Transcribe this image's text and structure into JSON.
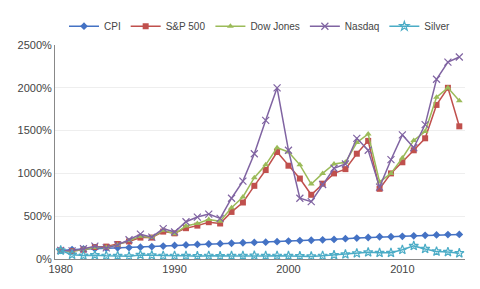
{
  "chart_data": {
    "type": "line",
    "x": [
      1980,
      1981,
      1982,
      1983,
      1984,
      1985,
      1986,
      1987,
      1988,
      1989,
      1990,
      1991,
      1992,
      1993,
      1994,
      1995,
      1996,
      1997,
      1998,
      1999,
      2000,
      2001,
      2002,
      2003,
      2004,
      2005,
      2006,
      2007,
      2008,
      2009,
      2010,
      2011,
      2012,
      2013,
      2014,
      2015
    ],
    "series": [
      {
        "name": "CPI",
        "color": "#4472C4",
        "marker": "diamond",
        "values": [
          100,
          110,
          117,
          121,
          126,
          131,
          133,
          138,
          144,
          151,
          159,
          165,
          170,
          175,
          179,
          184,
          190,
          194,
          197,
          202,
          209,
          215,
          219,
          224,
          229,
          237,
          244,
          251,
          260,
          260,
          265,
          271,
          277,
          281,
          285,
          287
        ]
      },
      {
        "name": "S&P 500",
        "color": "#C0504D",
        "marker": "square",
        "values": [
          100,
          92,
          108,
          140,
          145,
          175,
          205,
          250,
          250,
          320,
          300,
          360,
          390,
          430,
          415,
          550,
          660,
          855,
          1040,
          1250,
          1090,
          940,
          750,
          880,
          1000,
          1050,
          1230,
          1380,
          820,
          1000,
          1130,
          1270,
          1410,
          1800,
          2000,
          1550
        ]
      },
      {
        "name": "Dow Jones",
        "color": "#9BBB59",
        "marker": "triangle-up",
        "values": [
          100,
          90,
          110,
          135,
          135,
          165,
          215,
          265,
          250,
          335,
          295,
          385,
          415,
          460,
          440,
          600,
          725,
          950,
          1100,
          1300,
          1250,
          1100,
          875,
          1000,
          1110,
          1130,
          1360,
          1460,
          900,
          1000,
          1180,
          1385,
          1490,
          1890,
          2000,
          1850
        ]
      },
      {
        "name": "Nasdaq",
        "color": "#8064A2",
        "marker": "x-thin-open",
        "values": [
          100,
          95,
          120,
          150,
          130,
          165,
          225,
          290,
          255,
          355,
          315,
          435,
          490,
          525,
          475,
          710,
          910,
          1230,
          1620,
          2000,
          1270,
          710,
          670,
          870,
          1060,
          1110,
          1410,
          1270,
          840,
          1160,
          1450,
          1300,
          1570,
          2100,
          2300,
          2360
        ]
      },
      {
        "name": "Silver",
        "color": "#4BACC6",
        "marker": "star-open",
        "values": [
          100,
          50,
          40,
          44,
          38,
          36,
          32,
          48,
          43,
          38,
          38,
          37,
          33,
          38,
          33,
          36,
          36,
          40,
          36,
          38,
          36,
          33,
          30,
          38,
          46,
          54,
          67,
          78,
          72,
          72,
          108,
          153,
          118,
          88,
          82,
          68
        ]
      }
    ],
    "xlim": [
      1979.5,
      2015.5
    ],
    "xticks": [
      1980,
      1990,
      2000,
      2010
    ],
    "ylim": [
      0,
      2500
    ],
    "yticks": [
      {
        "value": 0,
        "label": "0%"
      },
      {
        "value": 500,
        "label": "500%"
      },
      {
        "value": 1000,
        "label": "1000%"
      },
      {
        "value": 1500,
        "label": "1500%"
      },
      {
        "value": 2000,
        "label": "2000%"
      },
      {
        "value": 2500,
        "label": "2500%"
      }
    ],
    "grid": true,
    "legend": "top"
  }
}
